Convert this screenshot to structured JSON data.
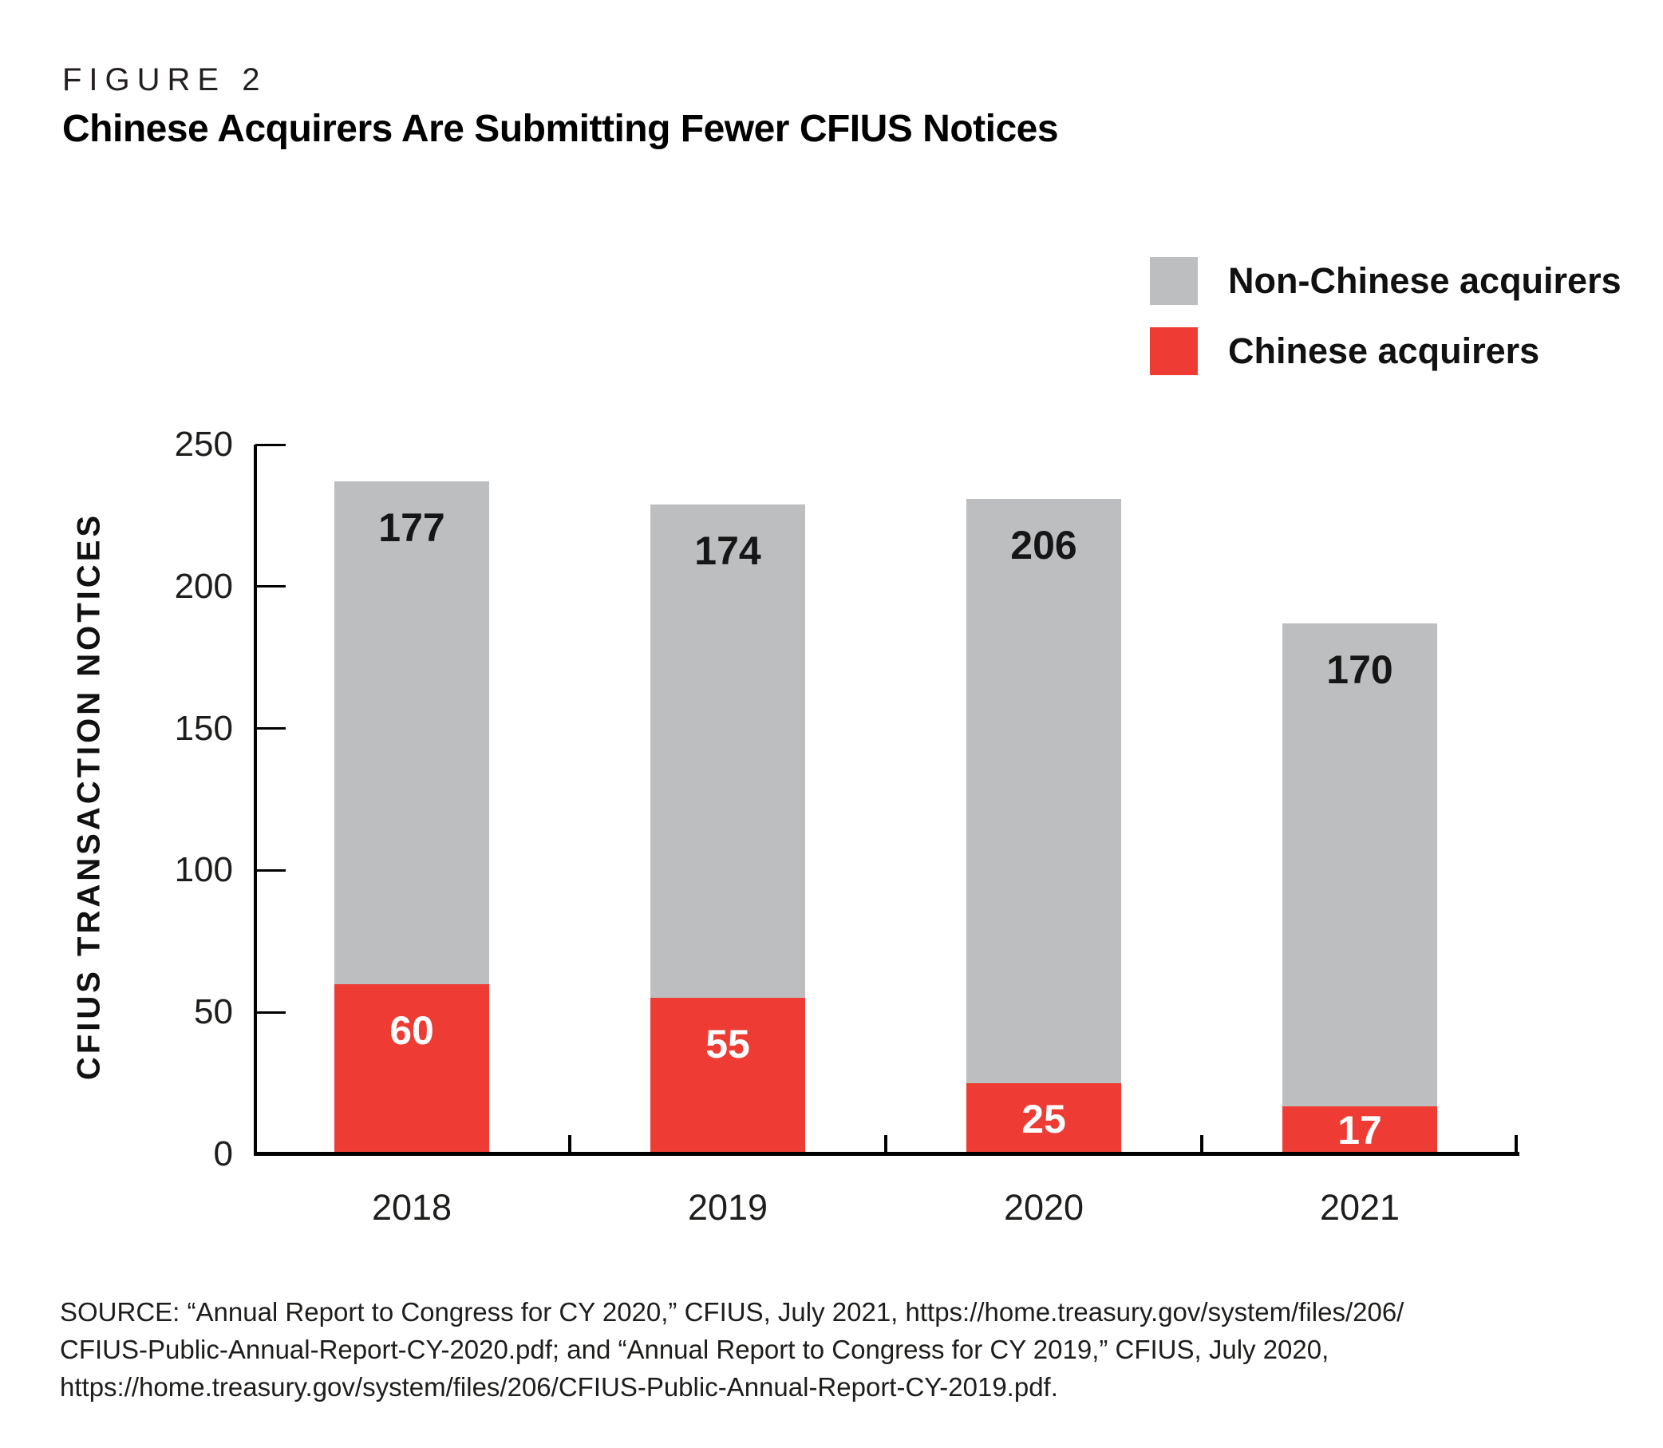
{
  "figure": {
    "label": "FIGURE 2",
    "title": "Chinese Acquirers Are Submitting Fewer CFIUS Notices"
  },
  "legend": {
    "items": [
      {
        "label": "Non-Chinese acquirers",
        "color": "#bdbec0"
      },
      {
        "label": "Chinese acquirers",
        "color": "#ee3b33"
      }
    ]
  },
  "chart_data": {
    "type": "bar",
    "stacked": true,
    "categories": [
      "2018",
      "2019",
      "2020",
      "2021"
    ],
    "series": [
      {
        "name": "Chinese acquirers",
        "color": "#ee3b33",
        "values": [
          60,
          55,
          25,
          17
        ]
      },
      {
        "name": "Non-Chinese acquirers",
        "color": "#bdbec0",
        "values": [
          177,
          174,
          206,
          170
        ]
      }
    ],
    "totals": [
      237,
      229,
      231,
      187
    ],
    "title": "Chinese Acquirers Are Submitting Fewer CFIUS Notices",
    "xlabel": "",
    "ylabel": "CFIUS TRANSACTION NOTICES",
    "ylim": [
      0,
      250
    ],
    "ytick_step": 50,
    "ytick_labels": [
      "0",
      "50",
      "100",
      "150",
      "200",
      "250"
    ],
    "grid": false,
    "legend_position": "top-right",
    "axis_color": "#000000",
    "value_label_color_on_gray": "#161616",
    "value_label_color_on_red": "#ffffff"
  },
  "source": {
    "lines": [
      "SOURCE: “Annual Report to Congress for CY 2020,” CFIUS, July 2021, https://home.treasury.gov/system/files/206/",
      "CFIUS-Public-Annual-Report-CY-2020.pdf; and “Annual Report to Congress for CY 2019,” CFIUS, July 2020,",
      "https://home.treasury.gov/system/files/206/CFIUS-Public-Annual-Report-CY-2019.pdf."
    ]
  }
}
